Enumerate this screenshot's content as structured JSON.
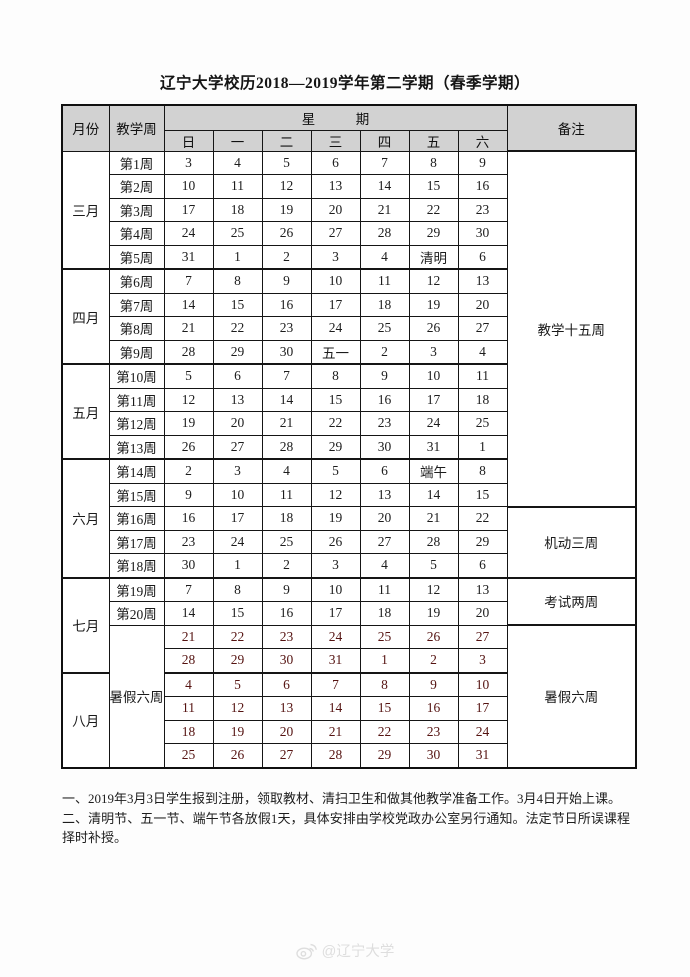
{
  "title": "辽宁大学校历2018—2019学年第二学期（春季学期）",
  "table": {
    "headers": {
      "month": "月份",
      "teaching_week": "教学周",
      "week": "星　　　期",
      "remarks": "备注",
      "days": [
        "日",
        "一",
        "二",
        "三",
        "四",
        "五",
        "六"
      ]
    },
    "months": [
      {
        "label": "三月",
        "rows": 5
      },
      {
        "label": "四月",
        "rows": 4
      },
      {
        "label": "五月",
        "rows": 4
      },
      {
        "label": "六月",
        "rows": 5
      },
      {
        "label": "七月",
        "rows": 4
      },
      {
        "label": "八月",
        "rows": 4
      }
    ],
    "rows": [
      {
        "week": "第1周",
        "type": "normal",
        "days": [
          "3",
          "4",
          "5",
          "6",
          "7",
          "8",
          "9"
        ],
        "highlight": [
          0,
          6
        ]
      },
      {
        "week": "第2周",
        "type": "normal",
        "days": [
          "10",
          "11",
          "12",
          "13",
          "14",
          "15",
          "16"
        ],
        "highlight": [
          0,
          6
        ]
      },
      {
        "week": "第3周",
        "type": "normal",
        "days": [
          "17",
          "18",
          "19",
          "20",
          "21",
          "22",
          "23"
        ],
        "highlight": [
          0,
          6
        ]
      },
      {
        "week": "第4周",
        "type": "normal",
        "days": [
          "24",
          "25",
          "26",
          "27",
          "28",
          "29",
          "30"
        ],
        "highlight": [
          0,
          6
        ]
      },
      {
        "week": "第5周",
        "type": "normal",
        "days": [
          "31",
          "1",
          "2",
          "3",
          "4",
          "清明",
          "6"
        ],
        "highlight": [
          0,
          5,
          6
        ]
      },
      {
        "week": "第6周",
        "type": "normal",
        "days": [
          "7",
          "8",
          "9",
          "10",
          "11",
          "12",
          "13"
        ],
        "highlight": [
          0,
          6
        ]
      },
      {
        "week": "第7周",
        "type": "normal",
        "days": [
          "14",
          "15",
          "16",
          "17",
          "18",
          "19",
          "20"
        ],
        "highlight": [
          0,
          6
        ]
      },
      {
        "week": "第8周",
        "type": "normal",
        "days": [
          "21",
          "22",
          "23",
          "24",
          "25",
          "26",
          "27"
        ],
        "highlight": [
          0,
          6
        ]
      },
      {
        "week": "第9周",
        "type": "normal",
        "days": [
          "28",
          "29",
          "30",
          "五一",
          "2",
          "3",
          "4"
        ],
        "highlight": [
          0,
          3,
          6
        ]
      },
      {
        "week": "第10周",
        "type": "normal",
        "days": [
          "5",
          "6",
          "7",
          "8",
          "9",
          "10",
          "11"
        ],
        "highlight": [
          0,
          6
        ]
      },
      {
        "week": "第11周",
        "type": "normal",
        "days": [
          "12",
          "13",
          "14",
          "15",
          "16",
          "17",
          "18"
        ],
        "highlight": [
          0,
          6
        ]
      },
      {
        "week": "第12周",
        "type": "normal",
        "days": [
          "19",
          "20",
          "21",
          "22",
          "23",
          "24",
          "25"
        ],
        "highlight": [
          0,
          6
        ]
      },
      {
        "week": "第13周",
        "type": "normal",
        "days": [
          "26",
          "27",
          "28",
          "29",
          "30",
          "31",
          "1"
        ],
        "highlight": [
          0,
          6
        ]
      },
      {
        "week": "第14周",
        "type": "normal",
        "days": [
          "2",
          "3",
          "4",
          "5",
          "6",
          "端午",
          "8"
        ],
        "highlight": [
          0,
          5,
          6
        ]
      },
      {
        "week": "第15周",
        "type": "normal",
        "days": [
          "9",
          "10",
          "11",
          "12",
          "13",
          "14",
          "15"
        ],
        "highlight": [
          0,
          6
        ]
      },
      {
        "week": "第16周",
        "type": "normal",
        "days": [
          "16",
          "17",
          "18",
          "19",
          "20",
          "21",
          "22"
        ],
        "highlight": [
          0,
          6
        ]
      },
      {
        "week": "第17周",
        "type": "normal",
        "days": [
          "23",
          "24",
          "25",
          "26",
          "27",
          "28",
          "29"
        ],
        "highlight": [
          0,
          6
        ]
      },
      {
        "week": "第18周",
        "type": "normal",
        "days": [
          "30",
          "1",
          "2",
          "3",
          "4",
          "5",
          "6"
        ],
        "highlight": [
          0,
          6
        ]
      },
      {
        "week": "第19周",
        "type": "normal",
        "days": [
          "7",
          "8",
          "9",
          "10",
          "11",
          "12",
          "13"
        ],
        "highlight": [
          0,
          6
        ]
      },
      {
        "week": "第20周",
        "type": "normal",
        "days": [
          "14",
          "15",
          "16",
          "17",
          "18",
          "19",
          "20"
        ],
        "highlight": [
          0,
          6
        ]
      },
      {
        "week": null,
        "type": "vacation",
        "days": [
          "21",
          "22",
          "23",
          "24",
          "25",
          "26",
          "27"
        ],
        "highlight": []
      },
      {
        "week": null,
        "type": "vacation",
        "days": [
          "28",
          "29",
          "30",
          "31",
          "1",
          "2",
          "3"
        ],
        "highlight": []
      },
      {
        "week": null,
        "type": "vacation",
        "days": [
          "4",
          "5",
          "6",
          "7",
          "8",
          "9",
          "10"
        ],
        "highlight": []
      },
      {
        "week": null,
        "type": "vacation",
        "days": [
          "11",
          "12",
          "13",
          "14",
          "15",
          "16",
          "17"
        ],
        "highlight": []
      },
      {
        "week": null,
        "type": "vacation",
        "days": [
          "18",
          "19",
          "20",
          "21",
          "22",
          "23",
          "24"
        ],
        "highlight": []
      },
      {
        "week": null,
        "type": "vacation",
        "days": [
          "25",
          "26",
          "27",
          "28",
          "29",
          "30",
          "31"
        ],
        "highlight": []
      }
    ],
    "summer_week_label": {
      "label": "暑假六周",
      "rows": 6
    },
    "remarks_spans": [
      {
        "label": "教学十五周",
        "rows": 15
      },
      {
        "label": "机动三周",
        "rows": 3
      },
      {
        "label": "考试两周",
        "rows": 2
      },
      {
        "label": "暑假六周",
        "rows": 6
      }
    ],
    "colors": {
      "header_bg": "#d2d2d2",
      "highlight_bg": "#f7c99e",
      "vacation_bg": "#f90400",
      "vacation_text": "#551311",
      "border": "#151515"
    }
  },
  "notes": [
    "一、2019年3月3日学生报到注册，领取教材、清扫卫生和做其他教学准备工作。3月4日开始上课。",
    "二、清明节、五一节、端午节各放假1天，具体安排由学校党政办公室另行通知。法定节日所误课程择时补授。"
  ],
  "watermark": {
    "icon": "weibo-icon",
    "text": "@辽宁大学",
    "color": "#dedede"
  }
}
